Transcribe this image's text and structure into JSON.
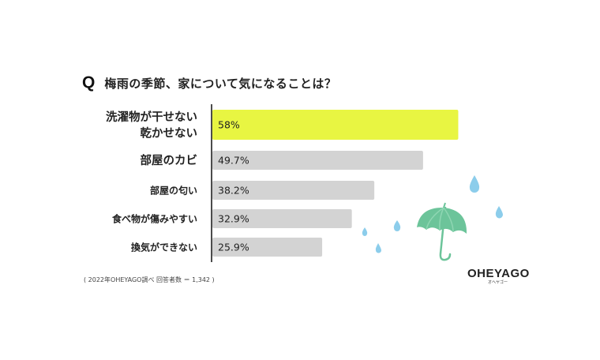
{
  "question": {
    "mark": "Q",
    "text": "梅雨の季節、家について気になることは？"
  },
  "chart_data": {
    "type": "bar",
    "orientation": "horizontal",
    "categories": [
      "洗濯物が干せない\n乾かせない",
      "部屋のカビ",
      "部屋の匂い",
      "食べ物が傷みやすい",
      "換気ができない"
    ],
    "values": [
      58,
      49.7,
      38.2,
      32.9,
      25.9
    ],
    "value_labels": [
      "58%",
      "49.7%",
      "38.2%",
      "32.9%",
      "25.9%"
    ],
    "highlight_color": "#E8F542",
    "bar_color": "#D3D3D3",
    "xlim": [
      0,
      100
    ],
    "grid": false
  },
  "footnote": "( 2022年OHEYAGO調べ 回答者数 ＝ 1,342 )",
  "logo": {
    "main": "OHEYAGO",
    "sub": "オヘヤゴー"
  },
  "decoration": {
    "icons": [
      "umbrella-icon",
      "raindrop-icon"
    ],
    "umbrella_color": "#6CC49A",
    "raindrop_color": "#8CCDEB"
  }
}
